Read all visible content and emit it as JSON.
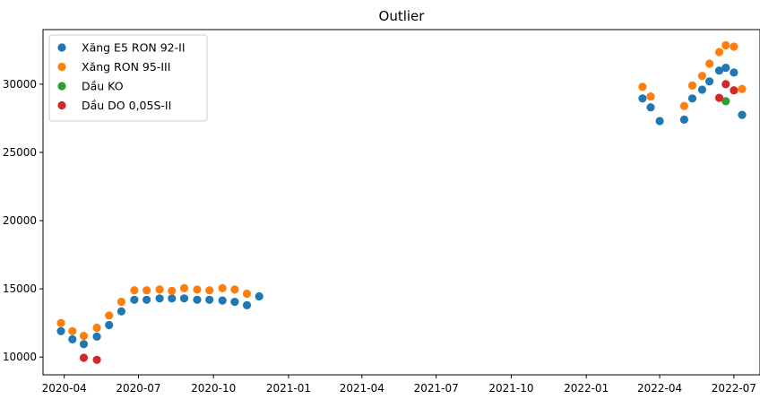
{
  "chart_data": {
    "type": "scatter",
    "title": "Outlier",
    "xlabel": "",
    "ylabel": "",
    "x_axis_type": "date",
    "xlim": [
      "2020-03-06",
      "2022-08-02"
    ],
    "ylim": [
      8700,
      34000
    ],
    "x_ticks": [
      "2020-04-01",
      "2020-07-01",
      "2020-10-01",
      "2021-01-01",
      "2021-04-01",
      "2021-07-01",
      "2021-10-01",
      "2022-01-01",
      "2022-04-01",
      "2022-07-01"
    ],
    "x_tick_labels": [
      "2020-04",
      "2020-07",
      "2020-10",
      "2021-01",
      "2021-04",
      "2021-07",
      "2021-10",
      "2022-01",
      "2022-04",
      "2022-07"
    ],
    "y_ticks": [
      10000,
      15000,
      20000,
      25000,
      30000
    ],
    "y_tick_labels": [
      "10000",
      "15000",
      "20000",
      "25000",
      "30000"
    ],
    "grid": false,
    "legend_position": "top-left",
    "series": [
      {
        "name": "Xăng E5 RON 92-II",
        "color": "#1f77b4",
        "points": [
          {
            "x": "2020-03-28",
            "y": 11900
          },
          {
            "x": "2020-04-11",
            "y": 11300
          },
          {
            "x": "2020-04-25",
            "y": 10950
          },
          {
            "x": "2020-05-11",
            "y": 11500
          },
          {
            "x": "2020-05-26",
            "y": 12350
          },
          {
            "x": "2020-06-10",
            "y": 13350
          },
          {
            "x": "2020-06-26",
            "y": 14200
          },
          {
            "x": "2020-07-11",
            "y": 14200
          },
          {
            "x": "2020-07-27",
            "y": 14300
          },
          {
            "x": "2020-08-11",
            "y": 14300
          },
          {
            "x": "2020-08-26",
            "y": 14300
          },
          {
            "x": "2020-09-11",
            "y": 14200
          },
          {
            "x": "2020-09-26",
            "y": 14200
          },
          {
            "x": "2020-10-12",
            "y": 14150
          },
          {
            "x": "2020-10-27",
            "y": 14050
          },
          {
            "x": "2020-11-11",
            "y": 13800
          },
          {
            "x": "2020-11-26",
            "y": 14450
          },
          {
            "x": "2022-03-11",
            "y": 28950
          },
          {
            "x": "2022-03-21",
            "y": 28300
          },
          {
            "x": "2022-04-01",
            "y": 27300
          },
          {
            "x": "2022-05-01",
            "y": 27400
          },
          {
            "x": "2022-05-11",
            "y": 28950
          },
          {
            "x": "2022-05-23",
            "y": 29600
          },
          {
            "x": "2022-06-01",
            "y": 30200
          },
          {
            "x": "2022-06-13",
            "y": 31000
          },
          {
            "x": "2022-06-21",
            "y": 31200
          },
          {
            "x": "2022-07-01",
            "y": 30850
          },
          {
            "x": "2022-07-11",
            "y": 27750
          }
        ]
      },
      {
        "name": "Xăng RON 95-III",
        "color": "#ff7f0e",
        "points": [
          {
            "x": "2020-03-28",
            "y": 12500
          },
          {
            "x": "2020-04-11",
            "y": 11900
          },
          {
            "x": "2020-04-25",
            "y": 11550
          },
          {
            "x": "2020-05-11",
            "y": 12150
          },
          {
            "x": "2020-05-26",
            "y": 13050
          },
          {
            "x": "2020-06-10",
            "y": 14050
          },
          {
            "x": "2020-06-26",
            "y": 14900
          },
          {
            "x": "2020-07-11",
            "y": 14900
          },
          {
            "x": "2020-07-27",
            "y": 14950
          },
          {
            "x": "2020-08-11",
            "y": 14850
          },
          {
            "x": "2020-08-26",
            "y": 15050
          },
          {
            "x": "2020-09-11",
            "y": 14950
          },
          {
            "x": "2020-09-26",
            "y": 14900
          },
          {
            "x": "2020-10-12",
            "y": 15050
          },
          {
            "x": "2020-10-27",
            "y": 14950
          },
          {
            "x": "2020-11-11",
            "y": 14650
          },
          {
            "x": "2022-03-11",
            "y": 29800
          },
          {
            "x": "2022-03-21",
            "y": 29100
          },
          {
            "x": "2022-05-01",
            "y": 28400
          },
          {
            "x": "2022-05-11",
            "y": 29900
          },
          {
            "x": "2022-05-23",
            "y": 30600
          },
          {
            "x": "2022-06-01",
            "y": 31500
          },
          {
            "x": "2022-06-13",
            "y": 32350
          },
          {
            "x": "2022-06-21",
            "y": 32850
          },
          {
            "x": "2022-07-01",
            "y": 32750
          },
          {
            "x": "2022-07-11",
            "y": 29650
          }
        ]
      },
      {
        "name": "Dầu KO",
        "color": "#2ca02c",
        "points": [
          {
            "x": "2022-06-21",
            "y": 28750
          }
        ]
      },
      {
        "name": "Dầu DO 0,05S-II",
        "color": "#d62728",
        "points": [
          {
            "x": "2020-04-25",
            "y": 9950
          },
          {
            "x": "2020-05-11",
            "y": 9800
          },
          {
            "x": "2022-06-13",
            "y": 29000
          },
          {
            "x": "2022-06-21",
            "y": 30000
          },
          {
            "x": "2022-07-01",
            "y": 29550
          }
        ]
      }
    ]
  }
}
